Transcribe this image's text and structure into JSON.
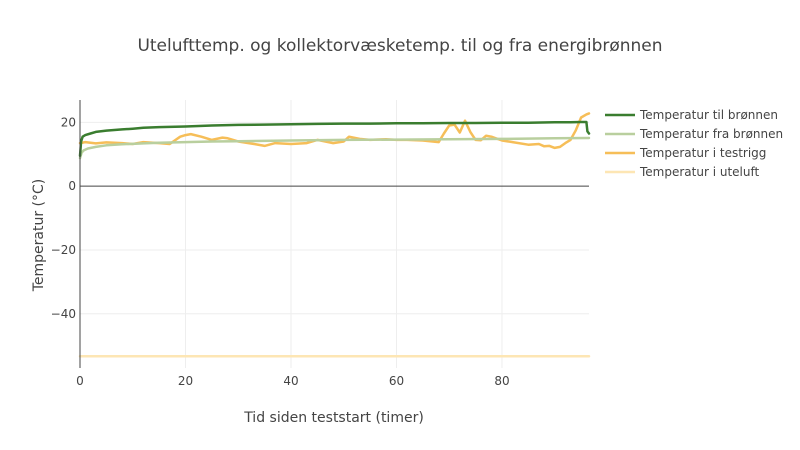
{
  "chart_data": {
    "type": "line",
    "title": "Utelufttemp. og kollektorvæsketemp. til og fra energibrønnen",
    "xlabel": "Tid siden teststart (timer)",
    "ylabel": "Temperatur (°C)",
    "xlim": [
      0,
      96.5
    ],
    "ylim": [
      -57,
      27
    ],
    "x_ticks": [
      0,
      20,
      40,
      60,
      80
    ],
    "y_ticks": [
      20,
      0,
      -20,
      -40
    ],
    "y_tick_labels": [
      "20",
      "0",
      "−20",
      "−40"
    ],
    "grid": true,
    "zero_line": true,
    "legend_position": "top-right",
    "series": [
      {
        "name": "Temperatur til brønnen",
        "color": "#3a7d2f",
        "width": 2.5,
        "x": [
          0,
          0.2,
          0.5,
          1,
          2,
          3,
          5,
          8,
          10,
          12,
          15,
          20,
          25,
          30,
          35,
          40,
          45,
          50,
          55,
          60,
          65,
          70,
          75,
          80,
          85,
          90,
          93,
          95,
          96,
          96.2,
          96.5
        ],
        "y": [
          9.5,
          14,
          15.5,
          16,
          16.5,
          17,
          17.4,
          17.8,
          18,
          18.3,
          18.5,
          18.7,
          19,
          19.2,
          19.3,
          19.4,
          19.5,
          19.6,
          19.6,
          19.7,
          19.7,
          19.8,
          19.8,
          19.9,
          19.9,
          20,
          20,
          20.1,
          20.1,
          17.2,
          16.5
        ]
      },
      {
        "name": "Temperatur fra brønnen",
        "color": "#b9cf9e",
        "width": 2.5,
        "x": [
          0,
          0.3,
          0.7,
          1.5,
          3,
          5,
          8,
          12,
          15,
          20,
          25,
          30,
          40,
          50,
          60,
          70,
          80,
          90,
          96.5
        ],
        "y": [
          8.8,
          10.5,
          11.2,
          11.8,
          12.3,
          12.8,
          13.1,
          13.4,
          13.6,
          13.8,
          14,
          14.1,
          14.3,
          14.5,
          14.6,
          14.7,
          14.8,
          15,
          15.1
        ]
      },
      {
        "name": "Temperatur i testrigg",
        "color": "#f6be58",
        "width": 2.5,
        "x": [
          0,
          1,
          3,
          5,
          8,
          10,
          12,
          15,
          17,
          19,
          20,
          21,
          23,
          25,
          27,
          28,
          30,
          33,
          35,
          37,
          40,
          43,
          45,
          48,
          50,
          51,
          53,
          55,
          58,
          60,
          62,
          65,
          68,
          69,
          70,
          71,
          72,
          73,
          74,
          75,
          76,
          77,
          78,
          80,
          82,
          85,
          87,
          88,
          89,
          90,
          91,
          92,
          93,
          94,
          95,
          96,
          96.5
        ],
        "y": [
          13.5,
          13.8,
          13.4,
          13.7,
          13.5,
          13.2,
          13.8,
          13.5,
          13.2,
          15.5,
          16,
          16.3,
          15.5,
          14.5,
          15.2,
          15,
          14,
          13.2,
          12.6,
          13.5,
          13.2,
          13.5,
          14.5,
          13.5,
          14,
          15.5,
          14.8,
          14.5,
          14.7,
          14.5,
          14.5,
          14.3,
          13.8,
          16.5,
          19,
          19.3,
          16.8,
          20.5,
          17,
          14.5,
          14.4,
          15.8,
          15.5,
          14.3,
          13.8,
          13,
          13.2,
          12.5,
          12.6,
          12,
          12.3,
          13.5,
          14.5,
          17.5,
          21.5,
          22.5,
          22.8
        ]
      },
      {
        "name": "Temperatur i uteluft",
        "color": "#fde6b4",
        "width": 2.5,
        "x": [
          0,
          20,
          40,
          60,
          80,
          96.5
        ],
        "y": [
          -53.3,
          -53.3,
          -53.3,
          -53.3,
          -53.3,
          -53.3
        ]
      }
    ]
  }
}
